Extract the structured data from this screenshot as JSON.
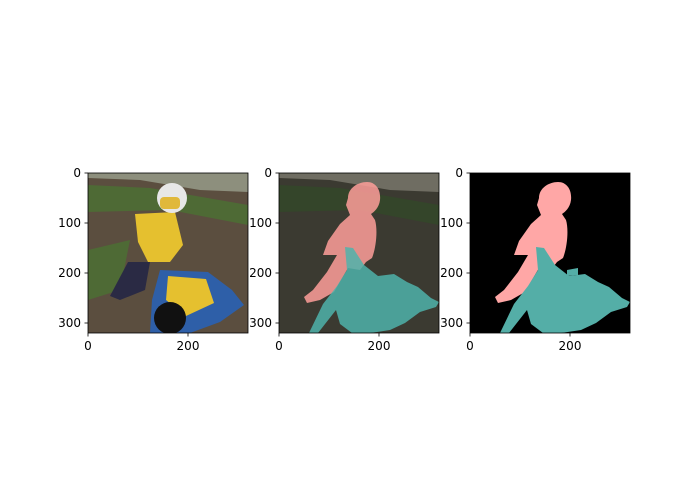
{
  "chart_data": [
    {
      "type": "image",
      "name": "photo",
      "xticks": [
        0,
        200
      ],
      "yticks": [
        0,
        100,
        200,
        300
      ],
      "xlim": [
        0,
        320
      ],
      "ylim": [
        320,
        0
      ],
      "colors": {
        "sky": "#8d8f7d",
        "dirt": "#5b4e3f",
        "grass": "#4e6a35",
        "rider": "#e5c02f",
        "bike": "#2e5fa8",
        "helmet": "#e7e7e7"
      }
    },
    {
      "type": "image",
      "name": "overlay",
      "xticks": [
        0,
        200
      ],
      "yticks": [
        0,
        100,
        200,
        300
      ],
      "xlim": [
        0,
        320
      ],
      "ylim": [
        320,
        0
      ],
      "colors": {
        "person_tint": "#ff9f9a",
        "motorbike_tint": "#4fb3aa"
      }
    },
    {
      "type": "image",
      "name": "mask",
      "xticks": [
        0,
        200
      ],
      "yticks": [
        0,
        100,
        200,
        300
      ],
      "xlim": [
        0,
        320
      ],
      "ylim": [
        320,
        0
      ],
      "colors": {
        "background": "#000000",
        "person": "#ffa7a6",
        "motorbike": "#54aea7"
      }
    }
  ]
}
